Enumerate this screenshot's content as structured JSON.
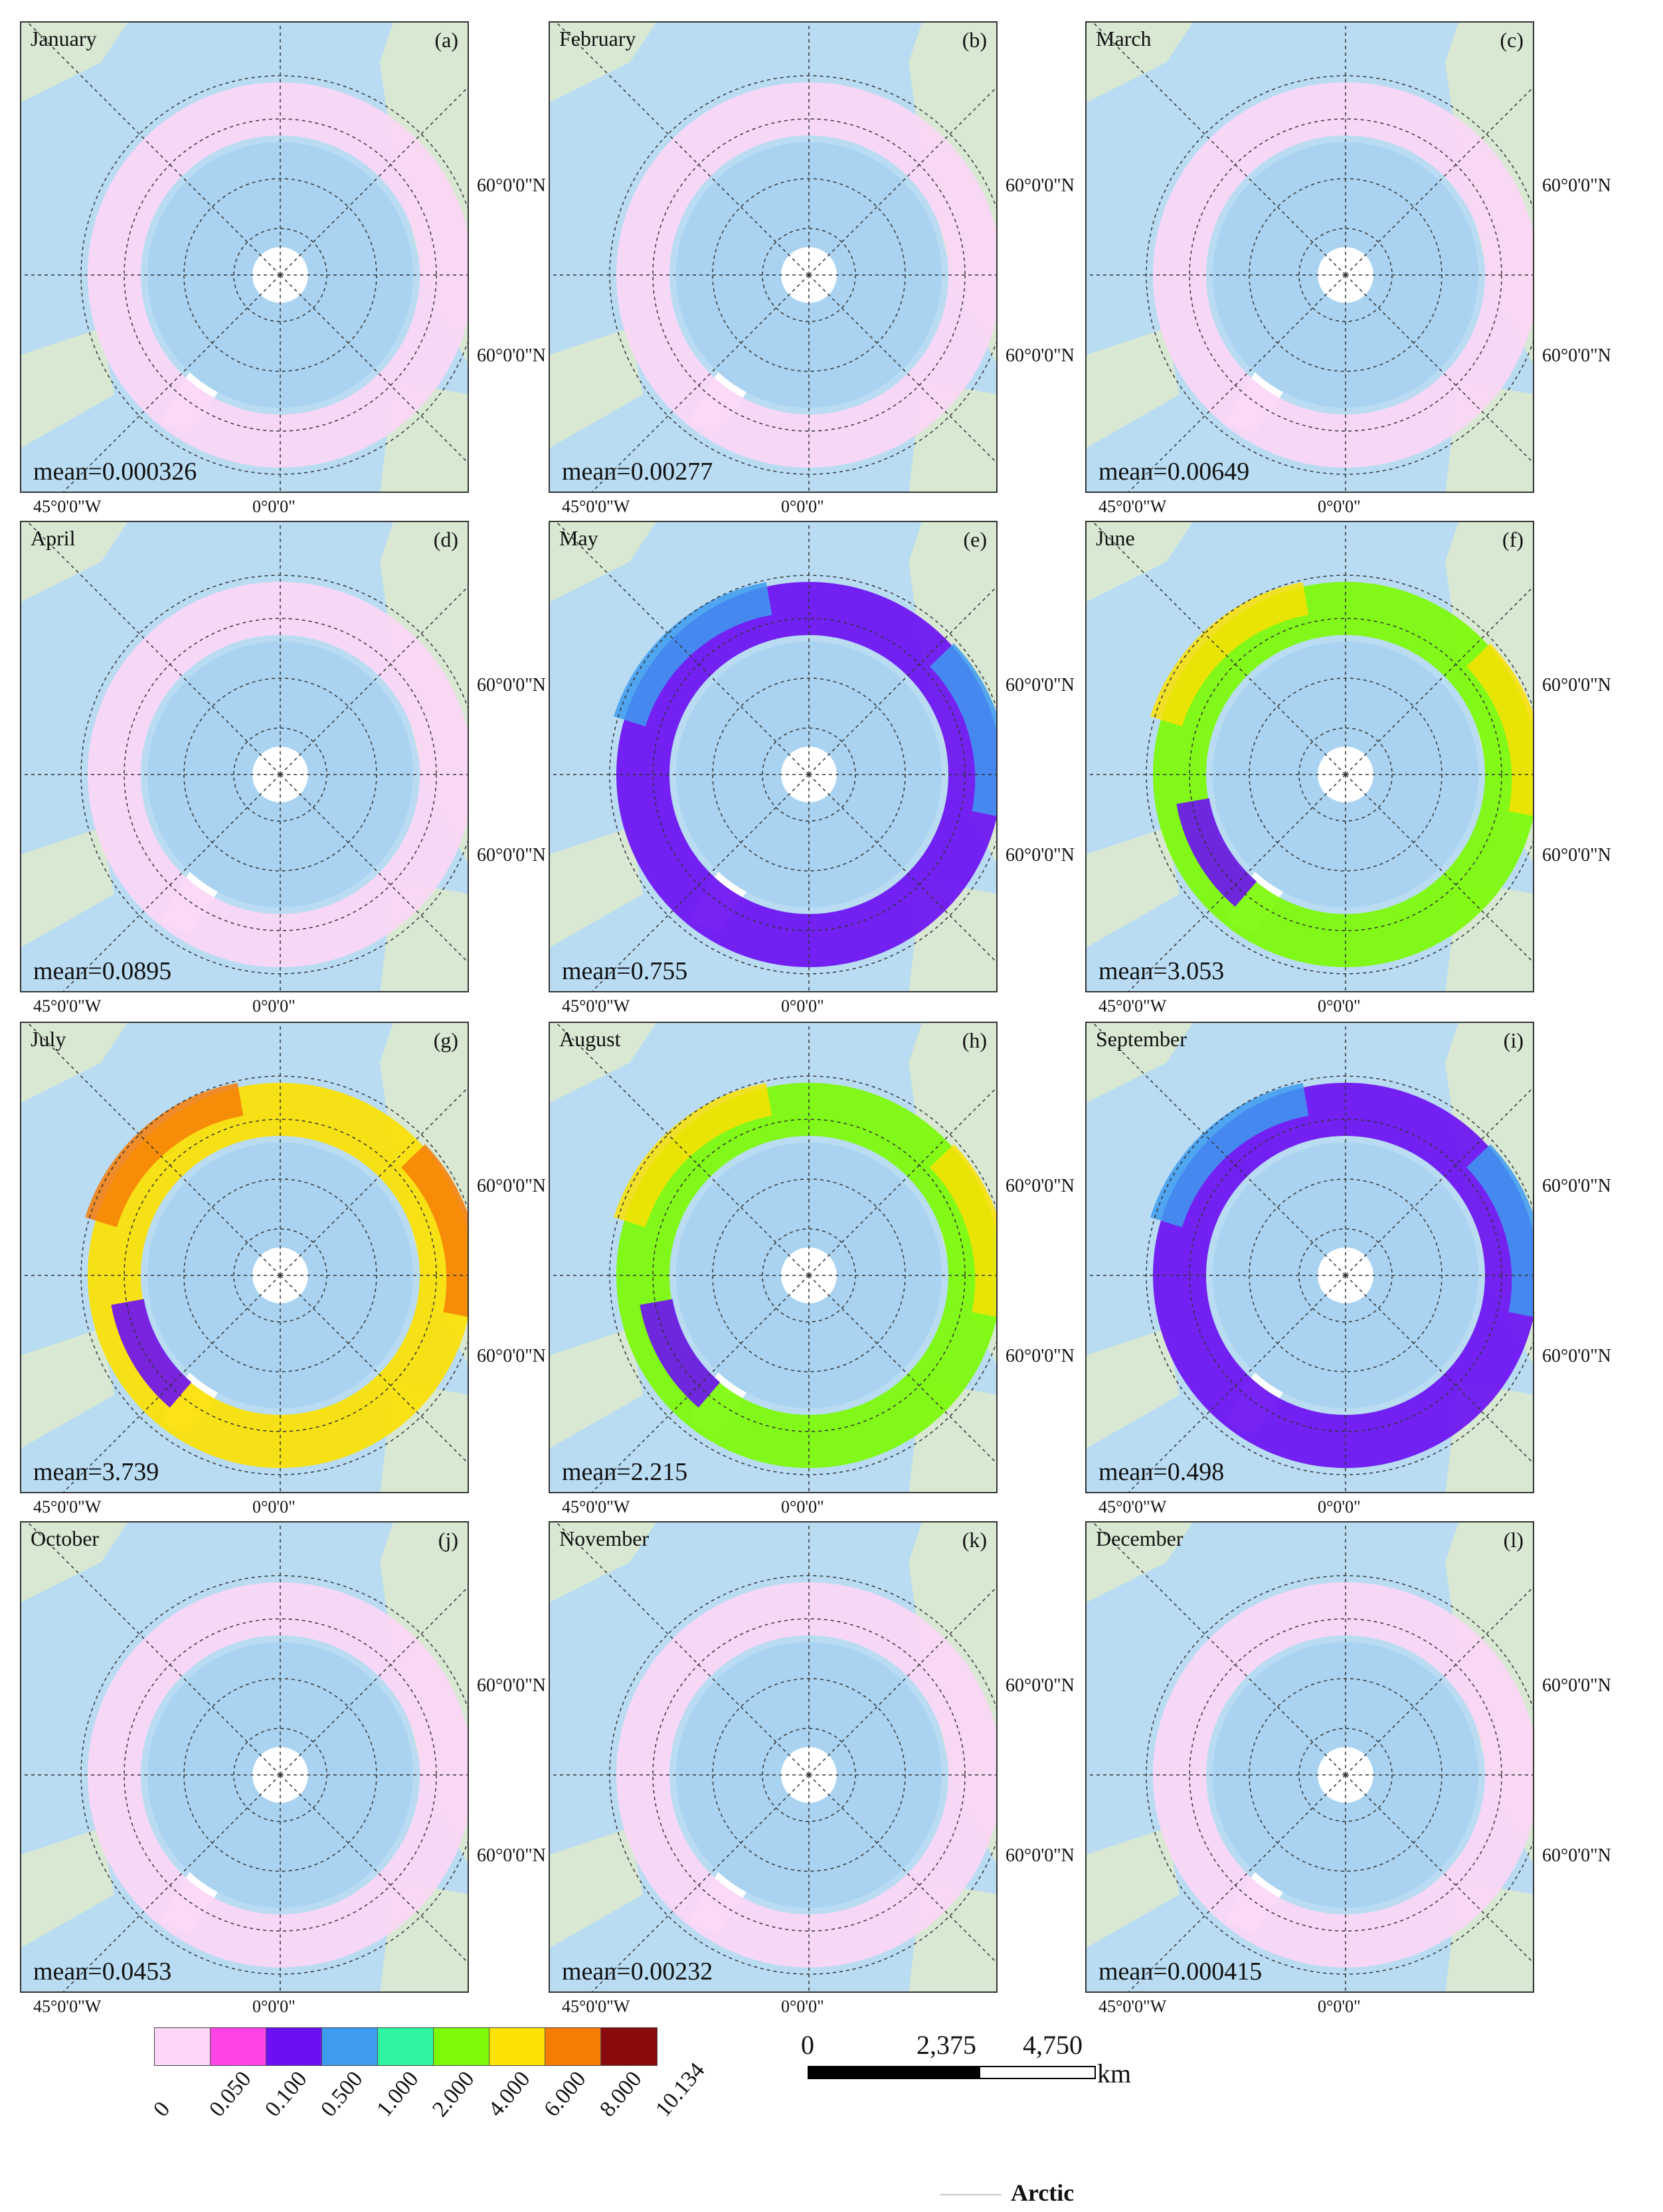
{
  "panels": [
    {
      "month": "January",
      "letter": "(a)",
      "mean": "mean=0.000326",
      "lat1": "60°0'0\"N",
      "lat2": "60°0'0\"N",
      "lon1": "45°0'0\"W",
      "lon2": "0°0'0\"",
      "dominant_class": 0
    },
    {
      "month": "February",
      "letter": "(b)",
      "mean": "mean=0.00277",
      "lat1": "60°0'0\"N",
      "lat2": "60°0'0\"N",
      "lon1": "45°0'0\"W",
      "lon2": "0°0'0\"",
      "dominant_class": 0
    },
    {
      "month": "March",
      "letter": "(c)",
      "mean": "mean=0.00649",
      "lat1": "60°0'0\"N",
      "lat2": "60°0'0\"N",
      "lon1": "45°0'0\"W",
      "lon2": "0°0'0\"",
      "dominant_class": 0
    },
    {
      "month": "April",
      "letter": "(d)",
      "mean": "mean=0.0895",
      "lat1": "60°0'0\"N",
      "lat2": "60°0'0\"N",
      "lon1": "45°0'0\"W",
      "lon2": "0°0'0\"",
      "dominant_class": 0
    },
    {
      "month": "May",
      "letter": "(e)",
      "mean": "mean=0.755",
      "lat1": "60°0'0\"N",
      "lat2": "60°0'0\"N",
      "lon1": "45°0'0\"W",
      "lon2": "0°0'0\"",
      "dominant_class": 2
    },
    {
      "month": "June",
      "letter": "(f)",
      "mean": "mean=3.053",
      "lat1": "60°0'0\"N",
      "lat2": "60°0'0\"N",
      "lon1": "45°0'0\"W",
      "lon2": "0°0'0\"",
      "dominant_class": 5
    },
    {
      "month": "July",
      "letter": "(g)",
      "mean": "mean=3.739",
      "lat1": "60°0'0\"N",
      "lat2": "60°0'0\"N",
      "lon1": "45°0'0\"W",
      "lon2": "0°0'0\"",
      "dominant_class": 6
    },
    {
      "month": "August",
      "letter": "(h)",
      "mean": "mean=2.215",
      "lat1": "60°0'0\"N",
      "lat2": "60°0'0\"N",
      "lon1": "45°0'0\"W",
      "lon2": "0°0'0\"",
      "dominant_class": 5
    },
    {
      "month": "September",
      "letter": "(i)",
      "mean": "mean=0.498",
      "lat1": "60°0'0\"N",
      "lat2": "60°0'0\"N",
      "lon1": "45°0'0\"W",
      "lon2": "0°0'0\"",
      "dominant_class": 2
    },
    {
      "month": "October",
      "letter": "(j)",
      "mean": "mean=0.0453",
      "lat1": "60°0'0\"N",
      "lat2": "60°0'0\"N",
      "lon1": "45°0'0\"W",
      "lon2": "0°0'0\"",
      "dominant_class": 0
    },
    {
      "month": "November",
      "letter": "(k)",
      "mean": "mean=0.00232",
      "lat1": "60°0'0\"N",
      "lat2": "60°0'0\"N",
      "lon1": "45°0'0\"W",
      "lon2": "0°0'0\"",
      "dominant_class": 0
    },
    {
      "month": "December",
      "letter": "(l)",
      "mean": "mean=0.000415",
      "lat1": "60°0'0\"N",
      "lat2": "60°0'0\"N",
      "lon1": "45°0'0\"W",
      "lon2": "0°0'0\"",
      "dominant_class": 0
    }
  ],
  "legend": {
    "colors": [
      "#fcd6f6",
      "#ff44e6",
      "#6b10f2",
      "#3d9bf0",
      "#2ff5a2",
      "#7cfa07",
      "#fbe104",
      "#f77c06",
      "#8a0b0b"
    ],
    "ticks": [
      "0",
      "0.050",
      "0.100",
      "0.500",
      "1.000",
      "2.000",
      "4.000",
      "6.000",
      "8.000",
      "10.134"
    ]
  },
  "scalebar": {
    "labels": [
      "0",
      "2,375",
      "4,750"
    ],
    "unit": "km"
  },
  "arctic_label": "Arctic",
  "colors": {
    "ocean": "#b9dcf3",
    "ice": "#ffffff",
    "land": "#dbe9cf"
  }
}
